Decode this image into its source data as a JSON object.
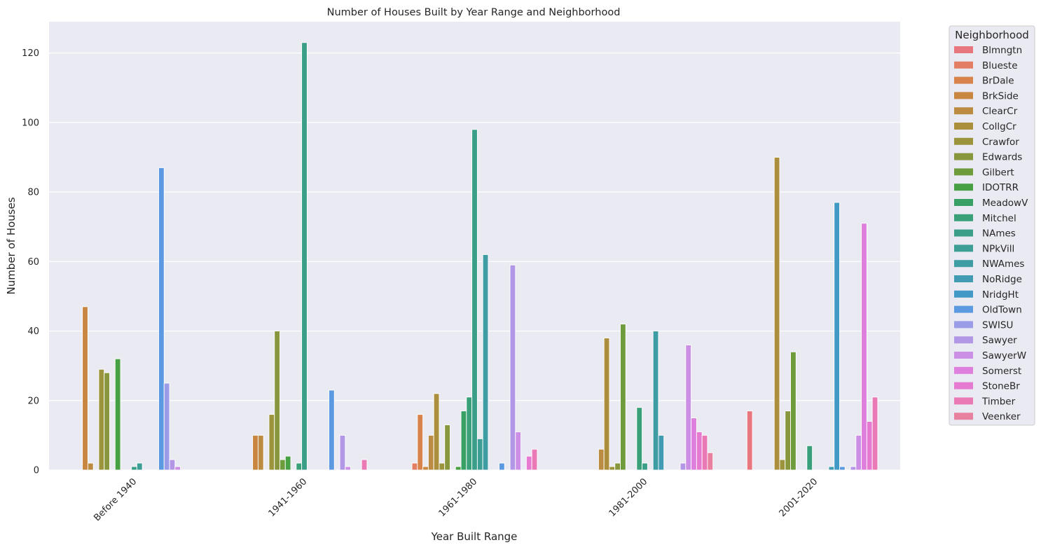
{
  "chart_data": {
    "type": "bar",
    "title": "Number of Houses Built by Year Range and Neighborhood",
    "xlabel": "Year Built Range",
    "ylabel": "Number of Houses",
    "categories": [
      "Before 1940",
      "1941-1960",
      "1961-1980",
      "1981-2000",
      "2001-2020"
    ],
    "y_ticks": [
      0,
      20,
      40,
      60,
      80,
      100,
      120
    ],
    "ylim": [
      0,
      129
    ],
    "grid": true,
    "legend": {
      "title": "Neighborhood",
      "placement": "outside-right"
    },
    "series": [
      {
        "name": "Blmngtn",
        "color": "#e8767f",
        "values": [
          0,
          0,
          0,
          0,
          17
        ]
      },
      {
        "name": "Blueste",
        "color": "#e37d64",
        "values": [
          0,
          0,
          2,
          0,
          0
        ]
      },
      {
        "name": "BrDale",
        "color": "#d8834b",
        "values": [
          0,
          0,
          16,
          0,
          0
        ]
      },
      {
        "name": "BrkSide",
        "color": "#c98640",
        "values": [
          47,
          10,
          1,
          0,
          0
        ]
      },
      {
        "name": "ClearCr",
        "color": "#bb8b41",
        "values": [
          2,
          10,
          10,
          6,
          0
        ]
      },
      {
        "name": "CollgCr",
        "color": "#ac8f3d",
        "values": [
          0,
          0,
          22,
          38,
          90
        ]
      },
      {
        "name": "Crawfor",
        "color": "#9b943c",
        "values": [
          29,
          16,
          2,
          1,
          3
        ]
      },
      {
        "name": "Edwards",
        "color": "#88973d",
        "values": [
          28,
          40,
          13,
          2,
          17
        ]
      },
      {
        "name": "Gilbert",
        "color": "#6e9c3d",
        "values": [
          0,
          3,
          0,
          42,
          34
        ]
      },
      {
        "name": "IDOTRR",
        "color": "#48a045",
        "values": [
          32,
          4,
          1,
          0,
          0
        ]
      },
      {
        "name": "MeadowV",
        "color": "#38a064",
        "values": [
          0,
          0,
          17,
          0,
          0
        ]
      },
      {
        "name": "Mitchel",
        "color": "#3aa07a",
        "values": [
          0,
          2,
          21,
          18,
          7
        ]
      },
      {
        "name": "NAmes",
        "color": "#3a9e89",
        "values": [
          1,
          123,
          98,
          2,
          0
        ]
      },
      {
        "name": "NPkVill",
        "color": "#3c9e95",
        "values": [
          2,
          0,
          9,
          0,
          0
        ]
      },
      {
        "name": "NWAmes",
        "color": "#3e9ca3",
        "values": [
          0,
          0,
          62,
          40,
          0
        ]
      },
      {
        "name": "NoRidge",
        "color": "#409bb3",
        "values": [
          0,
          0,
          0,
          10,
          1
        ]
      },
      {
        "name": "NridgHt",
        "color": "#4299c5",
        "values": [
          0,
          0,
          0,
          0,
          77
        ]
      },
      {
        "name": "OldTown",
        "color": "#5b9ae0",
        "values": [
          87,
          23,
          2,
          0,
          1
        ]
      },
      {
        "name": "SWISU",
        "color": "#9a9ce8",
        "values": [
          25,
          0,
          0,
          0,
          0
        ]
      },
      {
        "name": "Sawyer",
        "color": "#b297e6",
        "values": [
          3,
          10,
          59,
          2,
          1
        ]
      },
      {
        "name": "SawyerW",
        "color": "#cb8fe5",
        "values": [
          1,
          1,
          11,
          36,
          10
        ]
      },
      {
        "name": "Somerst",
        "color": "#de7fde",
        "values": [
          0,
          0,
          0,
          15,
          71
        ]
      },
      {
        "name": "StoneBr",
        "color": "#e67ad1",
        "values": [
          0,
          0,
          4,
          11,
          14
        ]
      },
      {
        "name": "Timber",
        "color": "#e97ab6",
        "values": [
          0,
          3,
          6,
          10,
          21
        ]
      },
      {
        "name": "Veenker",
        "color": "#e880a0",
        "values": [
          0,
          0,
          0,
          5,
          0
        ]
      }
    ]
  }
}
